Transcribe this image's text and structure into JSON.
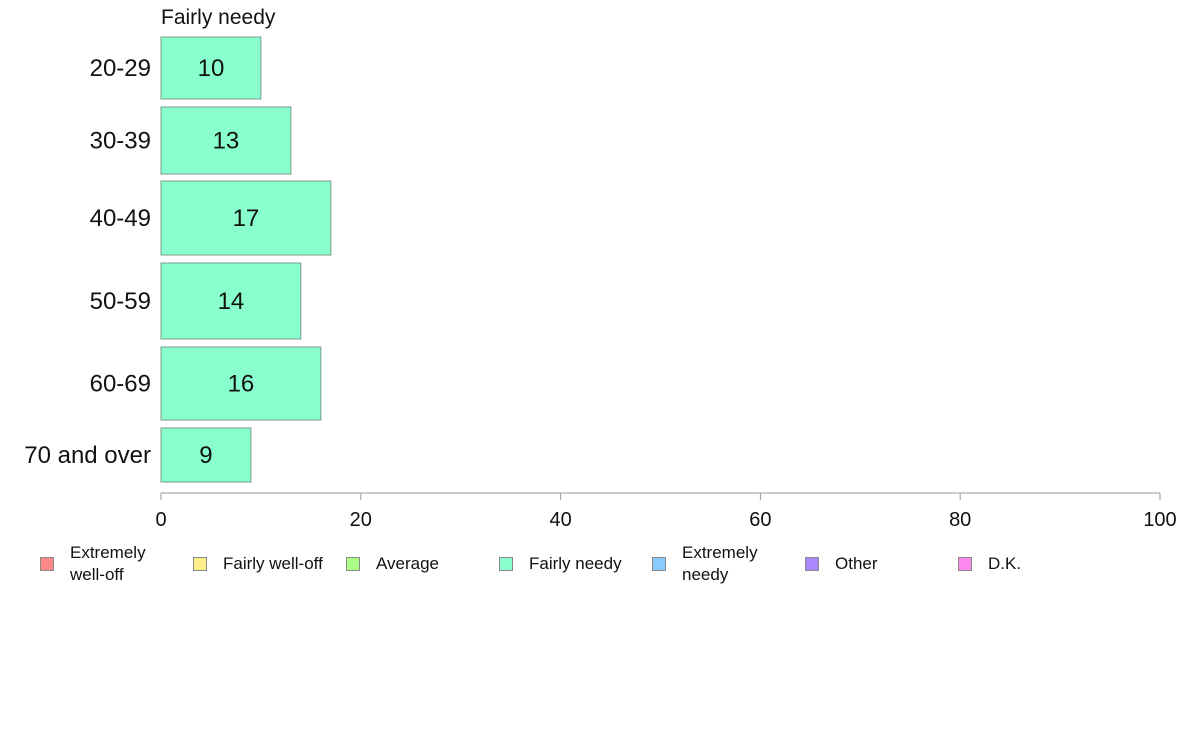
{
  "chart_data": {
    "type": "bar",
    "orientation": "horizontal",
    "title": "Fairly needy",
    "categories": [
      "20-29",
      "30-39",
      "40-49",
      "50-59",
      "60-69",
      "70 and over"
    ],
    "values": [
      10,
      13,
      17,
      14,
      16,
      9
    ],
    "data_labels": [
      "10",
      "13",
      "17",
      "14",
      "16",
      "9"
    ],
    "xlim": [
      0,
      100
    ],
    "x_ticks": [
      "0",
      "20",
      "40",
      "60",
      "80",
      "100"
    ],
    "grid": false,
    "bar_color": "#88ffcc",
    "legend_placement": "bottom",
    "legend": [
      {
        "label": "Extremely\nwell-off",
        "color": "#ff8888"
      },
      {
        "label": "Fairly well-off",
        "color": "#ffee88"
      },
      {
        "label": "Average",
        "color": "#aaff88"
      },
      {
        "label": "Fairly needy",
        "color": "#88ffcc"
      },
      {
        "label": "Extremely\nneedy",
        "color": "#88ccff"
      },
      {
        "label": "Other",
        "color": "#aa88ff"
      },
      {
        "label": "D.K.",
        "color": "#ff88ee"
      }
    ]
  }
}
